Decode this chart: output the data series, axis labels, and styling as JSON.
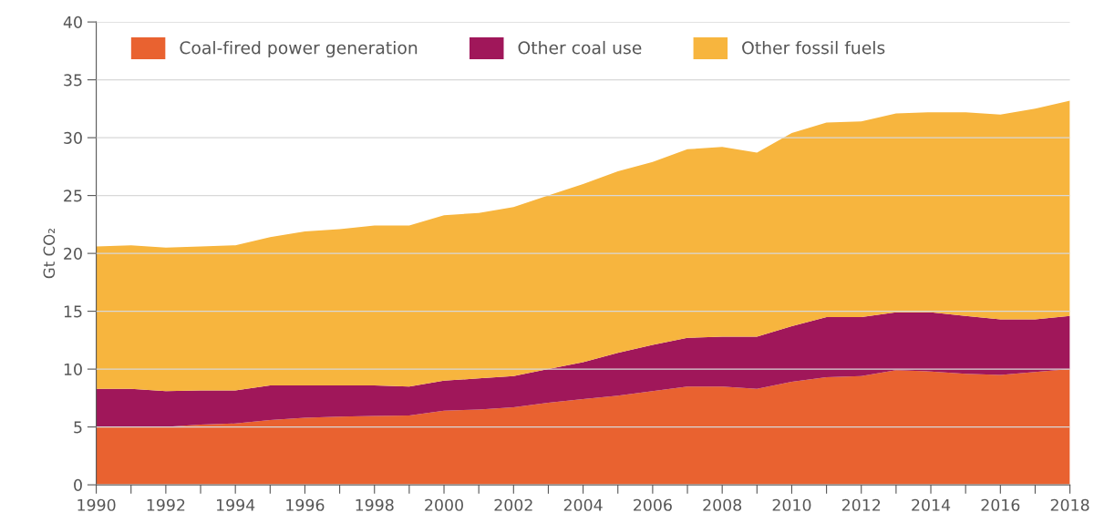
{
  "chart_data": {
    "type": "area",
    "stacked": true,
    "ylabel": "Gt CO₂",
    "x": [
      1990,
      1991,
      1992,
      1993,
      1994,
      1995,
      1996,
      1997,
      1998,
      1999,
      2000,
      2001,
      2002,
      2003,
      2004,
      2005,
      2006,
      2007,
      2008,
      2009,
      2010,
      2011,
      2012,
      2013,
      2014,
      2015,
      2016,
      2017,
      2018
    ],
    "series": [
      {
        "name": "Coal-fired power generation",
        "color": "#e96230",
        "values": [
          5.0,
          5.0,
          5.0,
          5.2,
          5.3,
          5.6,
          5.8,
          5.9,
          5.95,
          6.0,
          6.4,
          6.5,
          6.7,
          7.1,
          7.4,
          7.7,
          8.1,
          8.5,
          8.5,
          8.3,
          8.9,
          9.3,
          9.4,
          9.9,
          9.8,
          9.6,
          9.5,
          9.75,
          10.0
        ]
      },
      {
        "name": "Other coal use",
        "color": "#a0175a",
        "values": [
          3.3,
          3.3,
          3.1,
          2.95,
          2.85,
          3.0,
          2.8,
          2.7,
          2.65,
          2.5,
          2.6,
          2.7,
          2.7,
          2.9,
          3.2,
          3.7,
          4.0,
          4.2,
          4.3,
          4.5,
          4.8,
          5.2,
          5.1,
          5.0,
          5.1,
          5.0,
          4.8,
          4.55,
          4.6
        ]
      },
      {
        "name": "Other fossil fuels",
        "color": "#f7b53e",
        "values": [
          12.3,
          12.4,
          12.4,
          12.45,
          12.55,
          12.8,
          13.3,
          13.5,
          13.8,
          13.9,
          14.3,
          14.3,
          14.6,
          15.0,
          15.4,
          15.7,
          15.8,
          16.3,
          16.4,
          15.9,
          16.7,
          16.8,
          16.9,
          17.2,
          17.3,
          17.6,
          17.7,
          18.2,
          18.6
        ]
      }
    ],
    "xlim": [
      1990,
      2018
    ],
    "xticks": [
      1990,
      {
        "value": 1991,
        "label": null
      },
      1992,
      {
        "value": 1993,
        "label": null
      },
      1994,
      {
        "value": 1995,
        "label": null
      },
      1996,
      {
        "value": 1997,
        "label": null
      },
      1998,
      {
        "value": 1999,
        "label": null
      },
      2000,
      {
        "value": 2001,
        "label": null
      },
      2002,
      {
        "value": 2003,
        "label": null
      },
      2004,
      {
        "value": 2005,
        "label": null
      },
      2006,
      {
        "value": 2007,
        "label": null
      },
      2008,
      {
        "value": 2009,
        "label": null
      },
      2010,
      {
        "value": 2011,
        "label": null
      },
      2012,
      {
        "value": 2013,
        "label": null
      },
      2014,
      {
        "value": 2015,
        "label": null
      },
      2016,
      {
        "value": 2017,
        "label": null
      },
      2018
    ],
    "ylim": [
      0,
      40
    ],
    "yticks": [
      0,
      5,
      10,
      15,
      20,
      25,
      30,
      35,
      40
    ],
    "grid": "y",
    "legend": "top left"
  }
}
